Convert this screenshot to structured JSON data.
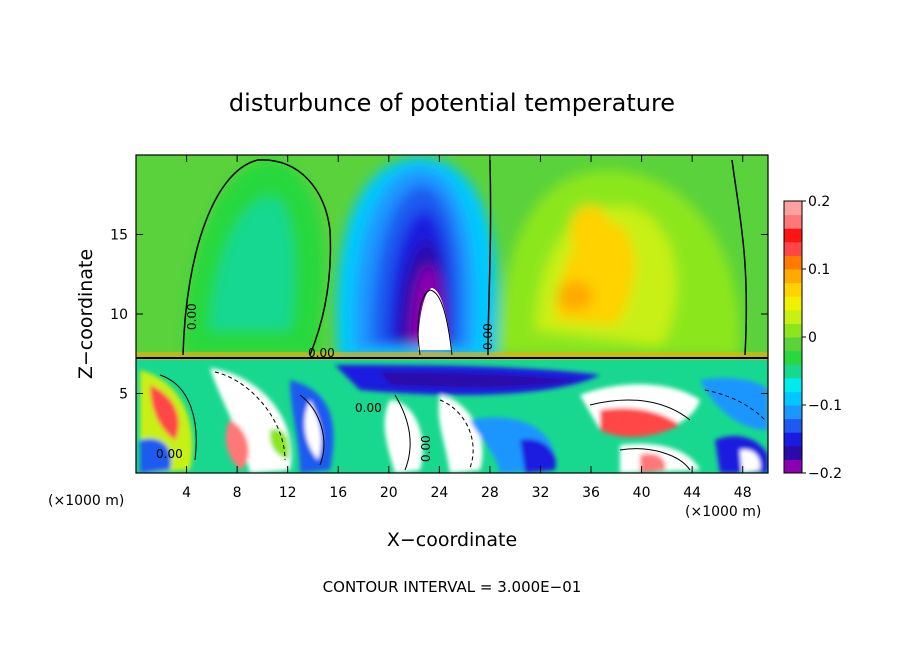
{
  "chart_data": {
    "type": "heatmap",
    "title": "disturbunce of potential temperature",
    "xlabel": "X−coordinate",
    "ylabel": "Z−coordinate",
    "x_unit_label_left": "(×1000 m)",
    "x_unit_label_right": "(×1000 m)",
    "footer": "CONTOUR INTERVAL = 3.000E−01",
    "xlim": [
      0,
      50
    ],
    "ylim": [
      0,
      20
    ],
    "x_ticks": [
      4,
      8,
      12,
      16,
      20,
      24,
      28,
      32,
      36,
      40,
      44,
      48
    ],
    "y_ticks": [
      5,
      10,
      15
    ],
    "colorbar": {
      "range": [
        -0.2,
        0.2
      ],
      "tick_values": [
        0.2,
        0.1,
        0,
        -0.1,
        -0.2
      ],
      "tick_labels": [
        "0.2",
        "0.1",
        "0",
        "−0.1",
        "−0.2"
      ],
      "colors": [
        "#8b00b0",
        "#2a0aa8",
        "#1a1ae0",
        "#1e5af0",
        "#1e96ff",
        "#00c8ff",
        "#00ecec",
        "#18d890",
        "#28d83c",
        "#5ad23c",
        "#8ce61e",
        "#c8f014",
        "#f0f000",
        "#ffd200",
        "#ffaa00",
        "#ff7a00",
        "#ff4646",
        "#ff1414",
        "#ff7878",
        "#ffa0a0"
      ]
    },
    "contour_labels": [
      "0.00",
      "0.00",
      "0.00",
      "0.00",
      "0.00",
      "0.00"
    ],
    "notes_interface_height": 7.4,
    "upper_layer": {
      "anomalies": [
        {
          "x": 22.5,
          "z": 13.5,
          "value": -0.2
        },
        {
          "x": 35.0,
          "z": 11.0,
          "value": 0.11
        },
        {
          "x": 8.0,
          "z": 15.0,
          "value": 0.02
        },
        {
          "x": 45.0,
          "z": 15.5,
          "value": 0.05
        }
      ]
    }
  }
}
